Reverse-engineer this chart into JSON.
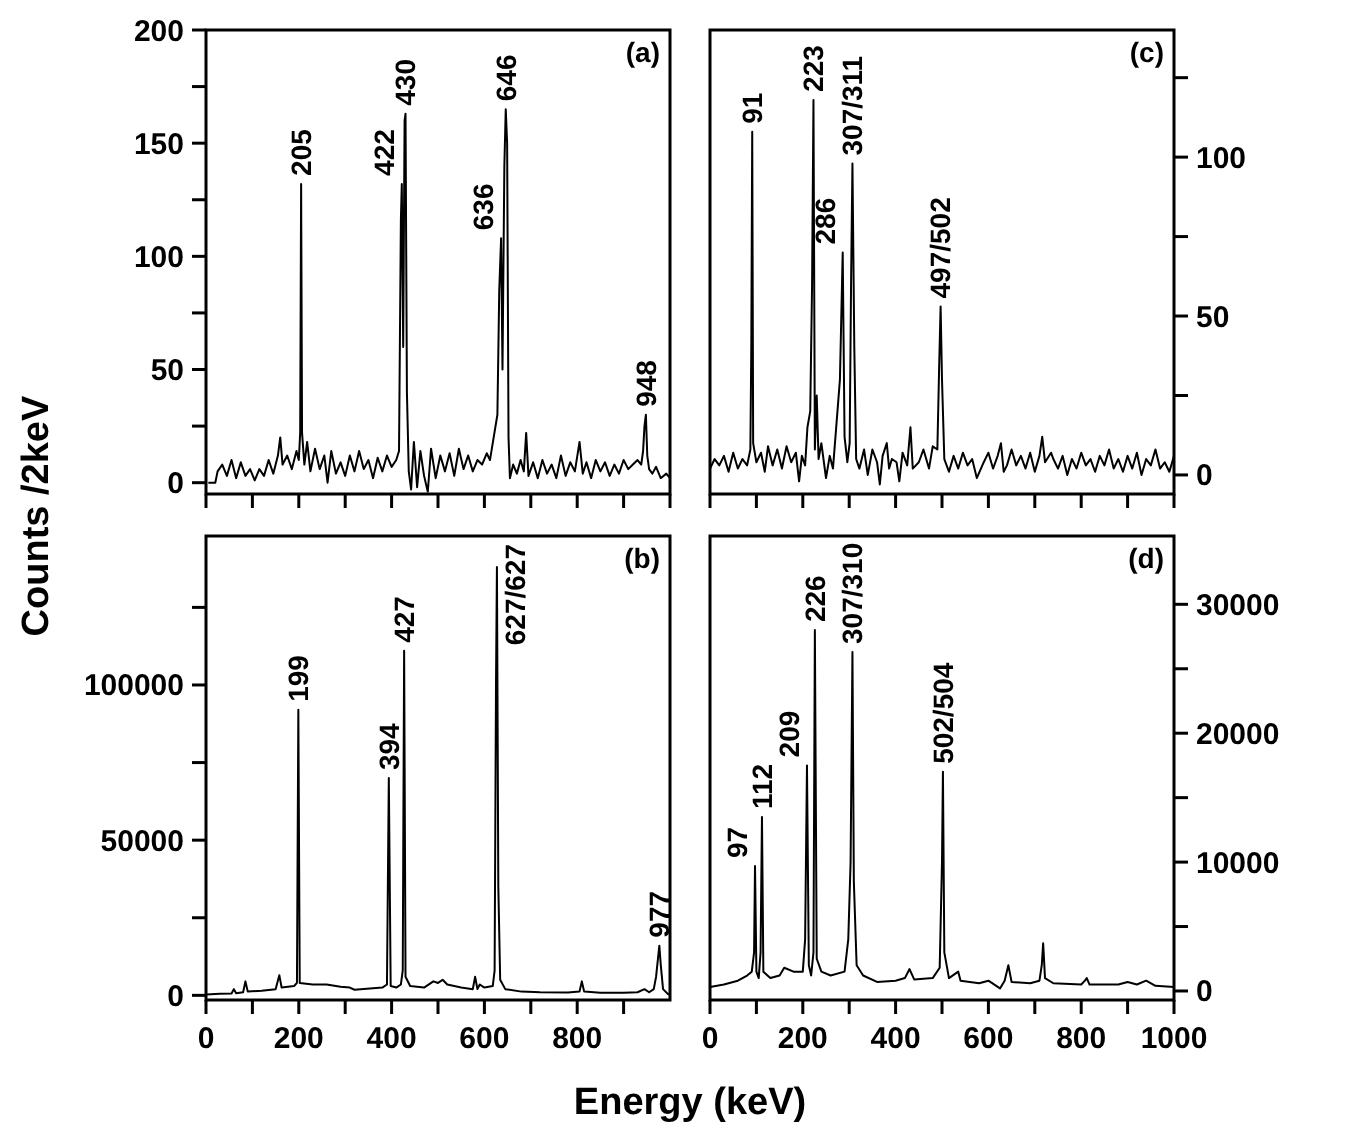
{
  "chart_data": [
    {
      "type": "line",
      "ylabel": "Counts /2keV",
      "xlim": [
        0,
        1000
      ],
      "xticks": [
        0,
        100,
        200,
        300,
        400,
        500,
        600,
        700,
        800,
        900,
        1000
      ],
      "ylim": [
        -5,
        200
      ],
      "yticks": [
        0,
        {
          "value": 25,
          "label": null
        },
        50,
        {
          "value": 75,
          "label": null
        },
        100,
        {
          "value": 125,
          "label": null
        },
        150,
        {
          "value": 175,
          "label": null
        },
        200
      ],
      "tick_labels": "y",
      "grid": false,
      "series": [
        {
          "color": "#000000",
          "x": [
            5,
            20,
            25,
            35,
            45,
            55,
            65,
            75,
            85,
            95,
            105,
            115,
            125,
            135,
            145,
            155,
            160,
            165,
            175,
            185,
            195,
            200,
            203,
            205,
            207,
            212,
            218,
            225,
            235,
            245,
            255,
            262,
            270,
            280,
            290,
            300,
            310,
            320,
            330,
            340,
            350,
            360,
            370,
            380,
            390,
            400,
            410,
            416,
            420,
            422,
            425,
            428,
            430,
            433,
            437,
            442,
            448,
            455,
            462,
            470,
            478,
            485,
            495,
            505,
            515,
            525,
            535,
            545,
            555,
            565,
            575,
            585,
            595,
            605,
            612,
            620,
            628,
            632,
            636,
            639,
            643,
            646,
            649,
            652,
            655,
            662,
            670,
            678,
            685,
            690,
            695,
            705,
            715,
            725,
            735,
            745,
            755,
            765,
            775,
            785,
            795,
            805,
            812,
            820,
            830,
            840,
            850,
            860,
            870,
            880,
            890,
            900,
            910,
            920,
            930,
            938,
            942,
            945,
            948,
            951,
            955,
            962,
            970,
            980,
            992,
            1000
          ],
          "values": [
            0,
            0,
            5,
            8,
            3,
            10,
            2,
            9,
            3,
            6,
            1,
            6,
            3,
            10,
            4,
            12,
            20,
            8,
            12,
            6,
            14,
            10,
            22,
            132,
            22,
            8,
            18,
            5,
            15,
            6,
            12,
            0,
            14,
            4,
            9,
            3,
            12,
            5,
            14,
            6,
            10,
            2,
            11,
            5,
            12,
            7,
            10,
            14,
            116,
            132,
            60,
            160,
            163,
            40,
            5,
            -3,
            18,
            -2,
            14,
            3,
            -4,
            15,
            2,
            12,
            5,
            13,
            3,
            15,
            6,
            12,
            5,
            10,
            8,
            13,
            10,
            20,
            30,
            85,
            108,
            50,
            140,
            165,
            150,
            20,
            2,
            8,
            4,
            10,
            5,
            22,
            3,
            9,
            2,
            10,
            4,
            8,
            2,
            12,
            3,
            9,
            5,
            18,
            4,
            9,
            2,
            10,
            5,
            9,
            3,
            8,
            4,
            10,
            6,
            8,
            10,
            8,
            14,
            25,
            30,
            12,
            6,
            4,
            7,
            2,
            4,
            2
          ]
        }
      ],
      "annotations": [
        "(a)",
        {
          "text": "205",
          "x": 205,
          "y": 132
        },
        {
          "text": "422",
          "x": 422,
          "y": 132
        },
        {
          "text": "430",
          "x": 430,
          "y": 163
        },
        {
          "text": "636",
          "x": 636,
          "y": 108
        },
        {
          "text": "646",
          "x": 646,
          "y": 165
        },
        {
          "text": "948",
          "x": 948,
          "y": 30
        }
      ]
    },
    {
      "type": "line",
      "xlim": [
        0,
        1000
      ],
      "xticks": [
        0,
        100,
        200,
        300,
        400,
        500,
        600,
        700,
        800,
        900,
        1000
      ],
      "ylim": [
        -6,
        140
      ],
      "yticks": [
        0,
        {
          "value": 25,
          "label": null
        },
        50,
        {
          "value": 75,
          "label": null
        },
        100,
        {
          "value": 125,
          "label": null
        }
      ],
      "tick_labels": "y",
      "grid": false,
      "series": [
        {
          "color": "#000000",
          "x": [
            0,
            10,
            20,
            30,
            40,
            50,
            60,
            70,
            80,
            87,
            89,
            91,
            93,
            100,
            110,
            118,
            125,
            135,
            145,
            155,
            165,
            175,
            185,
            192,
            198,
            205,
            210,
            216,
            220,
            223,
            226,
            230,
            234,
            240,
            250,
            258,
            265,
            272,
            280,
            286,
            290,
            296,
            301,
            304,
            307,
            311,
            315,
            322,
            332,
            340,
            350,
            360,
            366,
            372,
            381,
            386,
            392,
            402,
            408,
            415,
            425,
            432,
            437,
            450,
            460,
            472,
            480,
            490,
            494,
            497,
            500,
            505,
            515,
            525,
            535,
            545,
            555,
            565,
            575,
            590,
            600,
            610,
            620,
            627,
            633,
            640,
            650,
            660,
            670,
            680,
            690,
            700,
            710,
            716,
            722,
            735,
            740,
            750,
            760,
            770,
            780,
            790,
            800,
            810,
            820,
            830,
            840,
            850,
            860,
            870,
            880,
            890,
            900,
            910,
            920,
            930,
            940,
            950,
            960,
            970,
            980,
            990,
            1000
          ],
          "values": [
            2,
            5,
            3,
            6,
            1,
            7,
            2,
            5,
            3,
            8,
            40,
            108,
            10,
            4,
            7,
            1,
            9,
            3,
            8,
            2,
            9,
            4,
            7,
            -2,
            6,
            3,
            15,
            20,
            60,
            118,
            8,
            25,
            5,
            10,
            -1,
            6,
            2,
            15,
            30,
            70,
            12,
            4,
            10,
            60,
            98,
            40,
            5,
            2,
            8,
            0,
            8,
            4,
            -3,
            6,
            10,
            2,
            5,
            4,
            -2,
            7,
            3,
            15,
            2,
            4,
            8,
            2,
            9,
            8,
            35,
            53,
            30,
            5,
            1,
            6,
            2,
            7,
            3,
            5,
            -1,
            4,
            7,
            2,
            6,
            10,
            1,
            3,
            8,
            3,
            6,
            2,
            7,
            1,
            6,
            12,
            4,
            7,
            5,
            2,
            6,
            0,
            5,
            2,
            7,
            3,
            5,
            1,
            6,
            3,
            8,
            2,
            5,
            1,
            6,
            2,
            7,
            0,
            5,
            3,
            8,
            2,
            4,
            1,
            6
          ]
        }
      ],
      "annotations": [
        "(c)",
        {
          "text": "91",
          "x": 91,
          "y": 108
        },
        {
          "text": "223",
          "x": 223,
          "y": 118
        },
        {
          "text": "286",
          "x": 286,
          "y": 70
        },
        {
          "text": "307/311",
          "x": 307,
          "y": 98
        },
        {
          "text": "497/502",
          "x": 497,
          "y": 53
        }
      ]
    },
    {
      "type": "line",
      "xlim": [
        0,
        1000
      ],
      "xticks": [
        0,
        {
          "value": 100,
          "label": null
        },
        200,
        {
          "value": 300,
          "label": null
        },
        400,
        {
          "value": 500,
          "label": null
        },
        600,
        {
          "value": 700,
          "label": null
        },
        800,
        {
          "value": 900,
          "label": null
        }
      ],
      "ylim": [
        -1500,
        148000
      ],
      "yticks": [
        0,
        {
          "value": 25000,
          "label": null
        },
        50000,
        {
          "value": 75000,
          "label": null
        },
        100000,
        {
          "value": 125000,
          "label": null
        }
      ],
      "grid": false,
      "series": [
        {
          "color": "#000000",
          "x": [
            0,
            30,
            55,
            60,
            65,
            80,
            85,
            90,
            120,
            150,
            158,
            163,
            190,
            196,
            199,
            202,
            230,
            260,
            290,
            310,
            320,
            380,
            390,
            394,
            398,
            410,
            420,
            424,
            427,
            430,
            440,
            470,
            490,
            500,
            510,
            520,
            550,
            575,
            580,
            585,
            590,
            600,
            618,
            622,
            625,
            627,
            630,
            634,
            645,
            680,
            720,
            780,
            805,
            810,
            815,
            850,
            900,
            930,
            945,
            955,
            965,
            970,
            977,
            980,
            985,
            995,
            1000
          ],
          "values": [
            300,
            500,
            600,
            2000,
            700,
            1000,
            4500,
            1200,
            1500,
            2000,
            6500,
            2500,
            3000,
            4000,
            92000,
            4000,
            3500,
            3500,
            2800,
            2500,
            1800,
            2500,
            3500,
            70000,
            3000,
            2500,
            3500,
            8000,
            111000,
            6000,
            3000,
            2500,
            4500,
            4000,
            5000,
            3500,
            2500,
            2000,
            6000,
            2000,
            3500,
            2500,
            3000,
            8000,
            100000,
            138000,
            35000,
            5000,
            2000,
            1200,
            1000,
            900,
            1200,
            4500,
            1200,
            800,
            800,
            1000,
            2000,
            1000,
            2000,
            6000,
            16000,
            10000,
            2000,
            500,
            200
          ]
        }
      ],
      "annotations": [
        "(b)",
        {
          "text": "199",
          "x": 199,
          "y": 92000
        },
        {
          "text": "394",
          "x": 394,
          "y": 70000
        },
        {
          "text": "427",
          "x": 427,
          "y": 111000
        },
        {
          "text": "627/627",
          "x": 627,
          "y": 138000
        },
        {
          "text": "977",
          "x": 977,
          "y": 16000
        }
      ]
    },
    {
      "type": "line",
      "xlabel": "Energy (keV)",
      "xlim": [
        0,
        1000
      ],
      "xticks": [
        0,
        {
          "value": 100,
          "label": null
        },
        200,
        {
          "value": 300,
          "label": null
        },
        400,
        {
          "value": 500,
          "label": null
        },
        600,
        {
          "value": 700,
          "label": null
        },
        800,
        {
          "value": 900,
          "label": null
        },
        1000
      ],
      "ylim": [
        -700,
        35300
      ],
      "yticks": [
        0,
        {
          "value": 5000,
          "label": null
        },
        10000,
        {
          "value": 15000,
          "label": null
        },
        20000,
        {
          "value": 25000,
          "label": null
        },
        30000
      ],
      "grid": false,
      "series": [
        {
          "color": "#000000",
          "x": [
            0,
            30,
            60,
            80,
            90,
            95,
            97,
            100,
            105,
            109,
            112,
            115,
            130,
            150,
            160,
            180,
            200,
            205,
            209,
            213,
            218,
            223,
            226,
            230,
            240,
            260,
            290,
            298,
            303,
            307,
            310,
            316,
            330,
            360,
            400,
            420,
            430,
            440,
            480,
            495,
            500,
            502,
            505,
            515,
            535,
            540,
            580,
            600,
            625,
            635,
            643,
            650,
            690,
            710,
            715,
            718,
            722,
            740,
            800,
            808,
            812,
            818,
            880,
            900,
            920,
            940,
            960,
            1000
          ],
          "values": [
            300,
            500,
            800,
            1200,
            1500,
            3000,
            9700,
            1500,
            1000,
            3000,
            13500,
            1500,
            1000,
            1200,
            1800,
            1500,
            1500,
            4000,
            17500,
            2000,
            1200,
            3000,
            28000,
            2500,
            1500,
            1200,
            1500,
            4000,
            10000,
            26300,
            8500,
            2000,
            1200,
            700,
            800,
            1000,
            1700,
            900,
            1000,
            1800,
            10000,
            17000,
            3000,
            1000,
            1500,
            800,
            600,
            800,
            200,
            800,
            2000,
            700,
            600,
            800,
            2000,
            3700,
            1000,
            600,
            500,
            800,
            1000,
            500,
            500,
            700,
            500,
            800,
            400,
            300
          ]
        }
      ],
      "annotations": [
        "(d)",
        {
          "text": "97",
          "x": 97,
          "y": 9700
        },
        {
          "text": "112",
          "x": 112,
          "y": 13500
        },
        {
          "text": "209",
          "x": 209,
          "y": 17500
        },
        {
          "text": "226",
          "x": 226,
          "y": 28000
        },
        {
          "text": "307/310",
          "x": 307,
          "y": 26300
        },
        {
          "text": "502/504",
          "x": 502,
          "y": 17000
        }
      ]
    }
  ]
}
